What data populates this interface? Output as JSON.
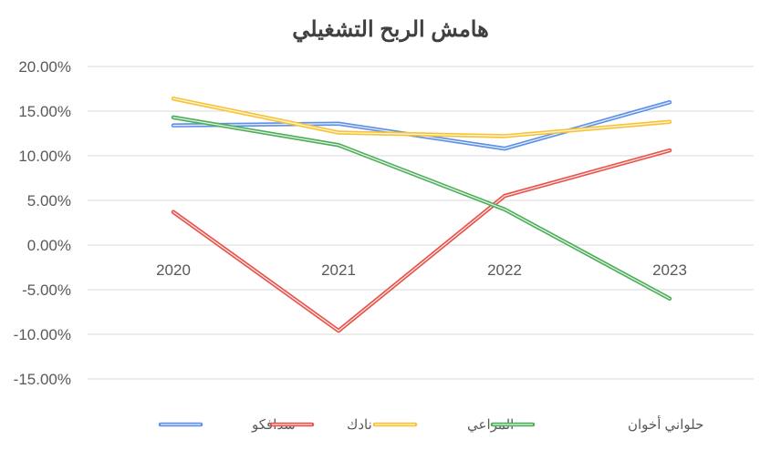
{
  "chart_data": {
    "type": "line",
    "title": "هامش الربح التشغيلي",
    "x": [
      "2020",
      "2021",
      "2022",
      "2023"
    ],
    "y_ticks": [
      "20.00%",
      "15.00%",
      "10.00%",
      "5.00%",
      "0.00%",
      "-5.00%",
      "-10.00%",
      "-15.00%"
    ],
    "ylim": [
      -15,
      20
    ],
    "grid": true,
    "legend_position": "bottom",
    "series": [
      {
        "name": "سدافكو",
        "color": "#5B8FE8",
        "values": [
          13.4,
          13.6,
          10.8,
          16.0
        ]
      },
      {
        "name": "نادك",
        "color": "#E8524A",
        "values": [
          3.7,
          -9.6,
          5.5,
          10.6
        ]
      },
      {
        "name": "المراعي",
        "color": "#F7C233",
        "values": [
          16.4,
          12.6,
          12.2,
          13.8
        ]
      },
      {
        "name": "حلواني أخوان",
        "color": "#4DAE5A",
        "values": [
          14.3,
          11.2,
          4.0,
          -6.0
        ]
      }
    ]
  }
}
